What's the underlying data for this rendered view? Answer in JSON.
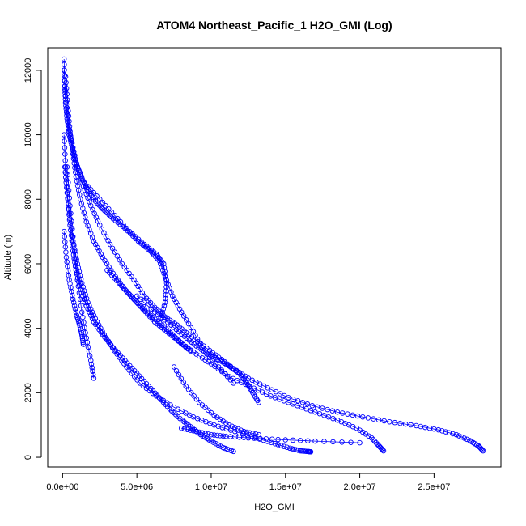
{
  "chart_data": {
    "type": "scatter",
    "title": "ATOM4 Northeast_Pacific_1 H2O_GMI (Log)",
    "xlabel": "H2O_GMI",
    "ylabel": "Altitude (m)",
    "xlim": [
      -1000000,
      29500000
    ],
    "ylim": [
      -300,
      12700
    ],
    "xticks": [
      {
        "value": 0,
        "label": "0.0e+00"
      },
      {
        "value": 5000000,
        "label": "5.0e+06"
      },
      {
        "value": 10000000,
        "label": "1.0e+07"
      },
      {
        "value": 15000000,
        "label": "1.5e+07"
      },
      {
        "value": 20000000,
        "label": "2.0e+07"
      },
      {
        "value": 25000000,
        "label": "2.5e+07"
      }
    ],
    "yticks": [
      {
        "value": 0,
        "label": "0"
      },
      {
        "value": 2000,
        "label": "2000"
      },
      {
        "value": 4000,
        "label": "4000"
      },
      {
        "value": 6000,
        "label": "6000"
      },
      {
        "value": 8000,
        "label": "8000"
      },
      {
        "value": 10000,
        "label": "10000"
      },
      {
        "value": 12000,
        "label": "12000"
      }
    ],
    "grid": false,
    "marker_color": "#0000ff",
    "line_color": "#0000ff",
    "series": [
      {
        "x": [
          100000,
          150000,
          200000,
          300000,
          450000,
          650000,
          850000,
          1100000,
          1350000,
          1700000,
          2100000,
          2700000,
          3400000,
          4200000,
          5100000,
          5900000,
          6500000,
          6900000,
          7400000,
          8000000,
          8800000,
          9500000,
          10500000,
          11500000
        ],
        "y": [
          12350,
          11500,
          11000,
          10500,
          10000,
          9600,
          9200,
          8900,
          8600,
          8300,
          8000,
          7700,
          7400,
          7100,
          6700,
          6400,
          6100,
          5600,
          5000,
          4500,
          3900,
          3300,
          2800,
          2300
        ]
      },
      {
        "x": [
          100000,
          200000,
          400000,
          700000,
          1000000,
          1400000,
          1900000,
          2500000,
          3200000,
          4000000,
          4800000,
          5500000,
          6200000,
          6900000,
          7700000,
          8500000,
          9500000,
          10500000,
          11500000,
          12500000,
          13800000,
          15200000,
          16800000,
          18500000,
          20200000,
          22000000,
          23800000,
          25300000,
          26500000,
          27400000,
          28000000,
          28300000
        ],
        "y": [
          12000,
          11200,
          10300,
          9600,
          9000,
          8400,
          7800,
          7200,
          6600,
          6000,
          5500,
          5000,
          4650,
          4350,
          4100,
          3800,
          3450,
          3100,
          2750,
          2450,
          2150,
          1850,
          1600,
          1400,
          1250,
          1100,
          980,
          850,
          700,
          520,
          350,
          200
        ]
      },
      {
        "x": [
          200000,
          350000,
          500000,
          700000,
          900000,
          1200000,
          1600000,
          2100000,
          2700000,
          3400000,
          4200000,
          5000000,
          5900000,
          6700000,
          7400000,
          8100000,
          9000000,
          10000000,
          11200000,
          12600000,
          14000000,
          15500000,
          17000000,
          18500000,
          19800000,
          20800000,
          21300000,
          21600000
        ],
        "y": [
          11800,
          10900,
          10100,
          9400,
          8700,
          8000,
          7300,
          6700,
          6200,
          5700,
          5200,
          4800,
          4400,
          4100,
          3800,
          3500,
          3200,
          2900,
          2500,
          2200,
          1900,
          1650,
          1400,
          1150,
          900,
          600,
          350,
          200
        ]
      },
      {
        "x": [
          100000,
          200000,
          350000,
          500000,
          700000,
          900000,
          1200000,
          1600000,
          2100000,
          2700000,
          3400000,
          4200000,
          5000000,
          5800000,
          6500000,
          7200000,
          7900000,
          8600000,
          9300000,
          10000000,
          10800000,
          11500000
        ],
        "y": [
          10000,
          9000,
          8000,
          7200,
          6400,
          5800,
          5200,
          4700,
          4200,
          3800,
          3400,
          3000,
          2600,
          2200,
          1850,
          1500,
          1200,
          950,
          700,
          500,
          300,
          180
        ]
      },
      {
        "x": [
          150000,
          300000,
          500000,
          700000,
          1000000,
          1300000,
          1700000,
          2200000,
          2800000,
          3500000,
          4300000,
          5200000,
          6300000,
          7500000,
          8800000,
          10200000,
          11600000,
          13000000,
          14300000,
          15300000,
          16000000,
          16500000,
          16700000
        ],
        "y": [
          9000,
          8200,
          7400,
          6700,
          6000,
          5400,
          4800,
          4300,
          3800,
          3300,
          2800,
          2300,
          1900,
          1550,
          1250,
          1000,
          800,
          600,
          420,
          280,
          200,
          180,
          170
        ]
      },
      {
        "x": [
          300000,
          500000,
          750000,
          1000000,
          1300000,
          1600000,
          1900000,
          2100000
        ],
        "y": [
          9000,
          7800,
          6600,
          5500,
          4500,
          3700,
          3000,
          2450
        ]
      },
      {
        "x": [
          100000,
          250000,
          450000,
          700000,
          950000,
          1150000,
          1300000,
          1400000
        ],
        "y": [
          7000,
          6200,
          5500,
          4900,
          4400,
          4100,
          3800,
          3500
        ]
      },
      {
        "x": [
          1500000,
          2500000,
          3500000,
          4500000,
          5500000,
          6300000,
          6800000,
          7000000,
          6900000,
          6600000
        ],
        "y": [
          8500,
          8000,
          7500,
          7000,
          6600,
          6300,
          6000,
          5400,
          4800,
          4300
        ]
      },
      {
        "x": [
          5000000,
          6200000,
          7300000,
          8200000,
          9000000,
          9800000,
          10600000,
          11300000,
          11900000,
          12400000,
          12800000,
          13200000
        ],
        "y": [
          5000,
          4500,
          4100,
          3750,
          3450,
          3200,
          3000,
          2800,
          2600,
          2300,
          2000,
          1700
        ]
      },
      {
        "x": [
          8000000,
          9000000,
          10000000,
          11000000,
          12500000,
          14500000,
          17000000,
          20000000
        ],
        "y": [
          900,
          800,
          700,
          650,
          600,
          550,
          500,
          450
        ]
      },
      {
        "x": [
          7500000,
          8300000,
          9200000,
          10200000,
          11200000,
          12200000,
          13200000
        ],
        "y": [
          2800,
          2200,
          1700,
          1300,
          1000,
          800,
          700
        ]
      },
      {
        "x": [
          3000000,
          3800000,
          4600000,
          5400000,
          6200000,
          7000000,
          7800000,
          8600000
        ],
        "y": [
          5800,
          5400,
          5000,
          4600,
          4200,
          3900,
          3600,
          3300
        ]
      }
    ]
  }
}
